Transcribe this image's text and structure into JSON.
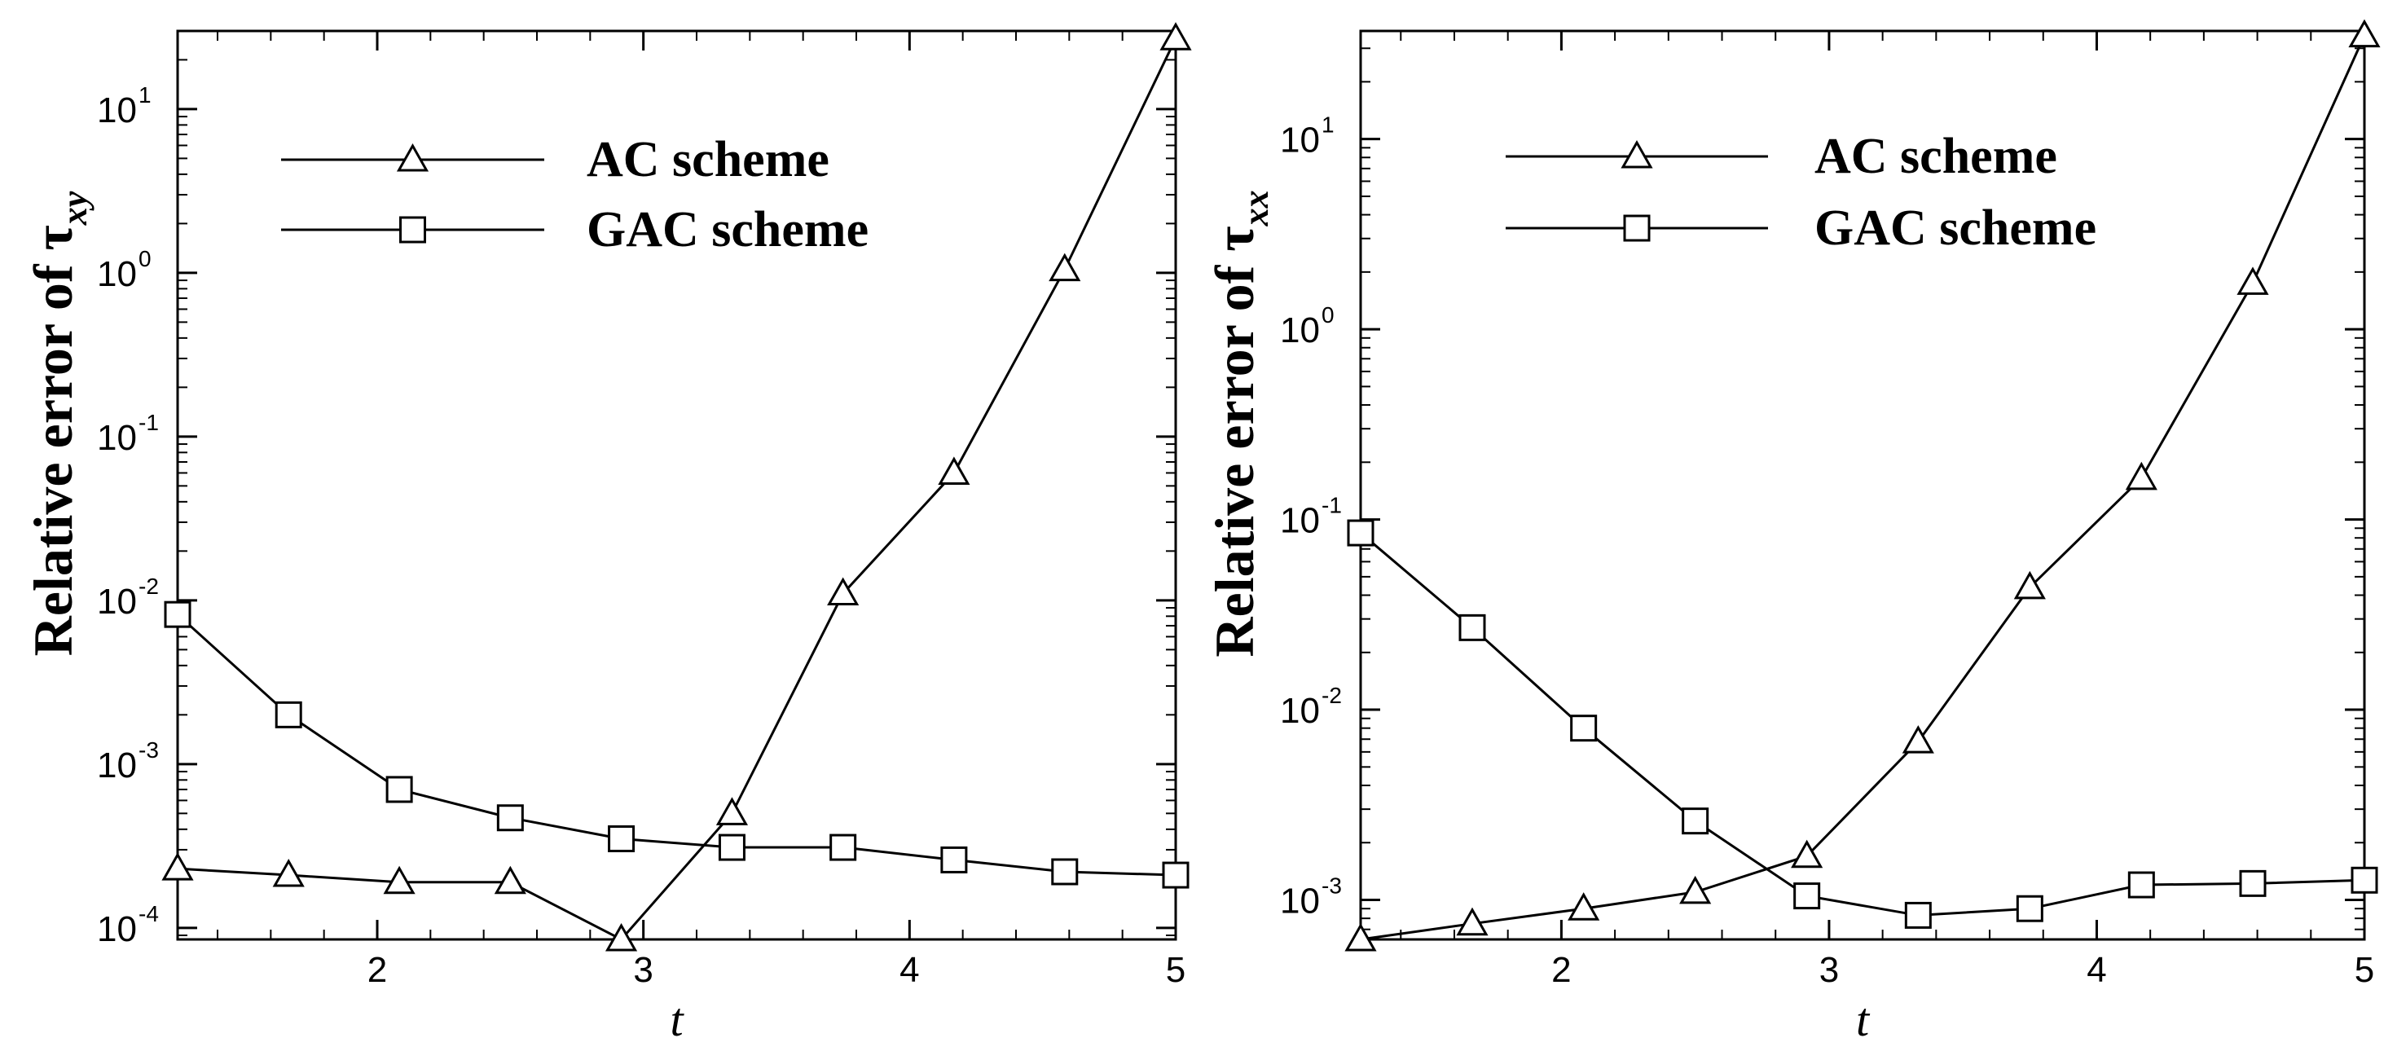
{
  "chart_data": [
    {
      "type": "line",
      "xlabel": "t",
      "ylabel": "Relative error of τ",
      "ylabel_sub": "xy",
      "xlim": [
        1.25,
        5.0
      ],
      "ylim": [
        8.5e-05,
        30
      ],
      "yscale": "log",
      "xticks": [
        2,
        3,
        4,
        5
      ],
      "yticks": [
        {
          "value": 0.0001,
          "base": "10",
          "exp": "-4"
        },
        {
          "value": 0.001,
          "base": "10",
          "exp": "-3"
        },
        {
          "value": 0.01,
          "base": "10",
          "exp": "-2"
        },
        {
          "value": 0.1,
          "base": "10",
          "exp": "-1"
        },
        {
          "value": 1,
          "base": "10",
          "exp": "0"
        },
        {
          "value": 10,
          "base": "10",
          "exp": "1"
        }
      ],
      "legend_position": "top-left",
      "series": [
        {
          "name": "AC scheme",
          "marker": "triangle",
          "x": [
            1.25,
            1.667,
            2.083,
            2.5,
            2.917,
            3.333,
            3.75,
            4.167,
            4.583,
            5.0
          ],
          "y": [
            0.00023,
            0.00021,
            0.00019,
            0.00019,
            8.5e-05,
            0.0005,
            0.011,
            0.06,
            1.05,
            27
          ]
        },
        {
          "name": "GAC scheme",
          "marker": "square",
          "x": [
            1.25,
            1.667,
            2.083,
            2.5,
            2.917,
            3.333,
            3.75,
            4.167,
            4.583,
            5.0
          ],
          "y": [
            0.0082,
            0.002,
            0.0007,
            0.00047,
            0.00035,
            0.00031,
            0.00031,
            0.00026,
            0.00022,
            0.00021
          ]
        }
      ]
    },
    {
      "type": "line",
      "xlabel": "t",
      "ylabel": "Relative error of τ",
      "ylabel_sub": "xx",
      "xlim": [
        1.25,
        5.0
      ],
      "ylim": [
        0.00062,
        37
      ],
      "yscale": "log",
      "xticks": [
        2,
        3,
        4,
        5
      ],
      "yticks": [
        {
          "value": 0.001,
          "base": "10",
          "exp": "-3"
        },
        {
          "value": 0.01,
          "base": "10",
          "exp": "-2"
        },
        {
          "value": 0.1,
          "base": "10",
          "exp": "-1"
        },
        {
          "value": 1,
          "base": "10",
          "exp": "0"
        },
        {
          "value": 10,
          "base": "10",
          "exp": "1"
        }
      ],
      "legend_position": "top-left",
      "series": [
        {
          "name": "AC scheme",
          "marker": "triangle",
          "x": [
            1.25,
            1.667,
            2.083,
            2.5,
            2.917,
            3.333,
            3.75,
            4.167,
            4.583,
            5.0
          ],
          "y": [
            0.00062,
            0.00075,
            0.0009,
            0.0011,
            0.0017,
            0.0068,
            0.044,
            0.165,
            1.75,
            35
          ]
        },
        {
          "name": "GAC scheme",
          "marker": "square",
          "x": [
            1.25,
            1.667,
            2.083,
            2.5,
            2.917,
            3.333,
            3.75,
            4.167,
            4.583,
            5.0
          ],
          "y": [
            0.085,
            0.027,
            0.008,
            0.0026,
            0.00105,
            0.00083,
            0.0009,
            0.0012,
            0.00122,
            0.00127
          ]
        }
      ]
    }
  ]
}
